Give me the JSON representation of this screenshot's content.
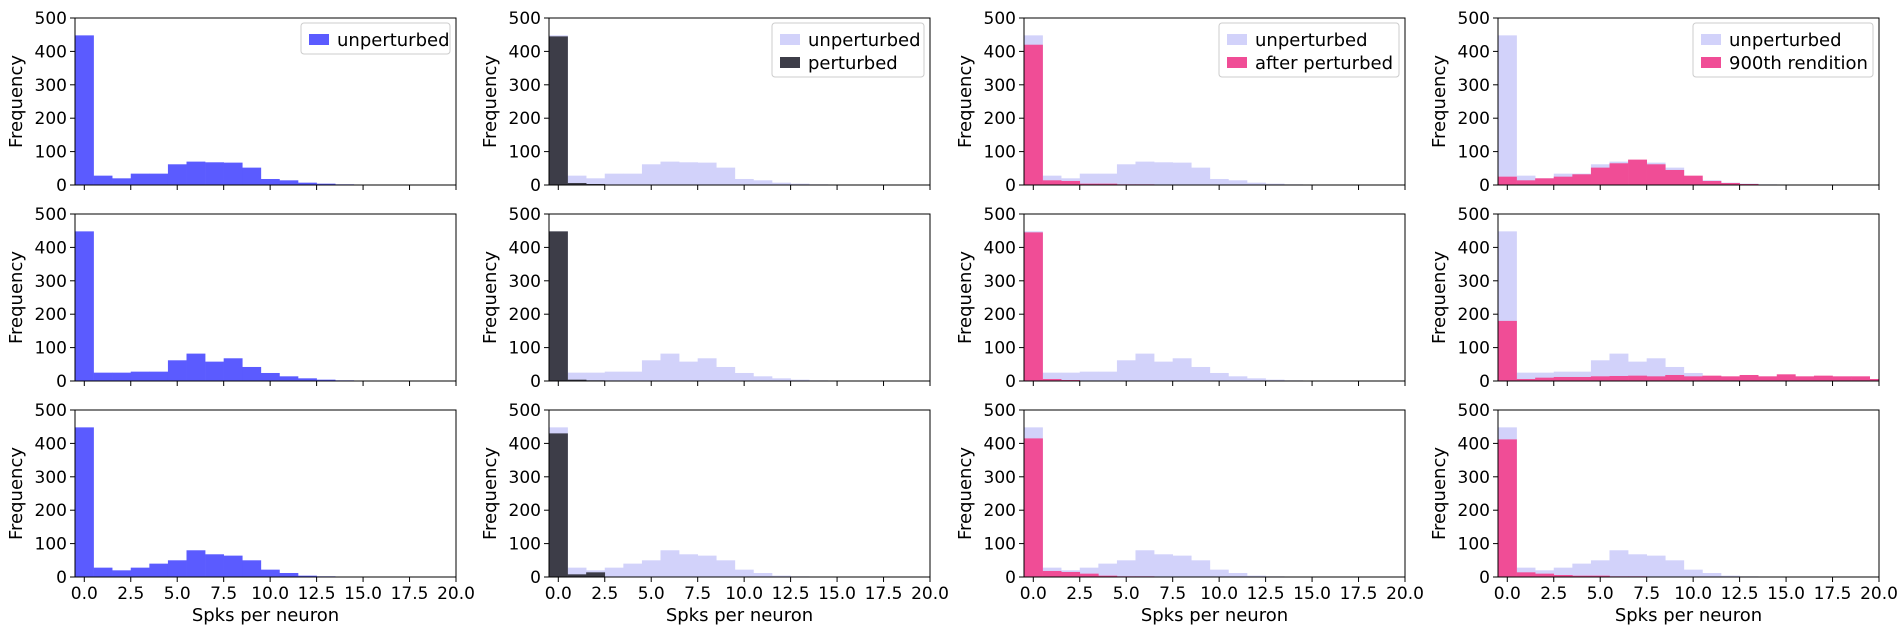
{
  "figure": {
    "background": "#ffffff"
  },
  "colors": {
    "blue": "#5b5bff",
    "light": "#d2d2fa",
    "dark": "#3d3d48",
    "pink": "#f04d96"
  },
  "chart_data": {
    "type": "bar",
    "subtype": "histogram-grid",
    "rows": 3,
    "cols": 4,
    "bin_width": 1,
    "bin_starts": [
      -0.5,
      0.5,
      1.5,
      2.5,
      3.5,
      4.5,
      5.5,
      6.5,
      7.5,
      8.5,
      9.5,
      10.5,
      11.5,
      12.5,
      13.5,
      14.5,
      15.5,
      16.5,
      17.5,
      18.5,
      19.5
    ],
    "xlim": [
      -0.5,
      20.0
    ],
    "ylim": [
      0,
      500
    ],
    "x_ticks": [
      "0.0",
      "2.5",
      "5.0",
      "7.5",
      "10.0",
      "12.5",
      "15.0",
      "17.5",
      "20.0"
    ],
    "x_tick_values": [
      0,
      2.5,
      5,
      7.5,
      10,
      12.5,
      15,
      17.5,
      20
    ],
    "y_ticks": [
      "0",
      "100",
      "200",
      "300",
      "400",
      "500"
    ],
    "y_tick_values": [
      0,
      100,
      200,
      300,
      400,
      500
    ],
    "xlabel": "Spks per neuron",
    "ylabel": "Frequency",
    "grid": false,
    "unperturbed": [
      [
        448,
        28,
        20,
        34,
        34,
        62,
        70,
        68,
        67,
        52,
        18,
        14,
        7,
        4,
        2,
        1,
        0,
        0,
        0,
        0,
        0
      ],
      [
        448,
        25,
        25,
        28,
        28,
        62,
        82,
        58,
        68,
        42,
        24,
        14,
        8,
        4,
        2,
        1,
        0,
        0,
        0,
        0,
        0
      ],
      [
        448,
        28,
        20,
        28,
        40,
        50,
        80,
        68,
        64,
        50,
        22,
        12,
        4,
        2,
        0,
        0,
        0,
        0,
        0,
        0,
        0
      ]
    ],
    "panels": [
      [
        {
          "legend": [
            "unperturbed"
          ],
          "overlay": null
        },
        {
          "legend": [
            "unperturbed",
            "perturbed"
          ],
          "overlay": {
            "color": "dark",
            "values": [
              445,
              6,
              3,
              0,
              0,
              0,
              0,
              0,
              0,
              0,
              0,
              0,
              0,
              0,
              0,
              0,
              0,
              0,
              0,
              0,
              0
            ]
          }
        },
        {
          "legend": [
            "unperturbed",
            "after perturbed"
          ],
          "overlay": {
            "color": "pink",
            "values": [
              420,
              14,
              12,
              4,
              4,
              2,
              2,
              0,
              0,
              0,
              0,
              0,
              0,
              0,
              0,
              0,
              0,
              0,
              0,
              0,
              0
            ]
          }
        },
        {
          "legend": [
            "unperturbed",
            "900th rendition"
          ],
          "overlay": {
            "color": "pink",
            "values": [
              25,
              14,
              20,
              25,
              32,
              52,
              65,
              76,
              62,
              45,
              28,
              12,
              6,
              3,
              1,
              0,
              0,
              0,
              0,
              0,
              0
            ]
          }
        }
      ],
      [
        {
          "legend": [],
          "overlay": null
        },
        {
          "legend": [],
          "overlay": {
            "color": "dark",
            "values": [
              448,
              4,
              2,
              0,
              0,
              0,
              0,
              0,
              0,
              0,
              0,
              0,
              0,
              0,
              0,
              0,
              0,
              0,
              0,
              0,
              0
            ]
          }
        },
        {
          "legend": [],
          "overlay": {
            "color": "pink",
            "values": [
              445,
              6,
              3,
              0,
              0,
              0,
              0,
              0,
              0,
              0,
              0,
              0,
              0,
              0,
              0,
              0,
              0,
              0,
              0,
              0,
              0
            ]
          }
        },
        {
          "legend": [],
          "overlay": {
            "color": "pink",
            "values": [
              180,
              6,
              10,
              12,
              12,
              14,
              15,
              16,
              14,
              18,
              14,
              16,
              14,
              18,
              14,
              20,
              14,
              16,
              14,
              14,
              6
            ]
          }
        }
      ],
      [
        {
          "legend": [],
          "overlay": null
        },
        {
          "legend": [],
          "overlay": {
            "color": "dark",
            "values": [
              430,
              8,
              14,
              0,
              0,
              0,
              0,
              0,
              0,
              0,
              0,
              0,
              0,
              0,
              0,
              0,
              0,
              0,
              0,
              0,
              0
            ]
          }
        },
        {
          "legend": [],
          "overlay": {
            "color": "pink",
            "values": [
              415,
              18,
              15,
              10,
              4,
              2,
              2,
              0,
              0,
              0,
              0,
              0,
              0,
              0,
              0,
              0,
              0,
              0,
              0,
              0,
              0
            ]
          }
        },
        {
          "legend": [],
          "overlay": {
            "color": "pink",
            "values": [
              412,
              14,
              10,
              6,
              4,
              4,
              2,
              2,
              1,
              0,
              0,
              0,
              0,
              0,
              0,
              0,
              0,
              0,
              0,
              0,
              0
            ]
          }
        }
      ]
    ]
  }
}
